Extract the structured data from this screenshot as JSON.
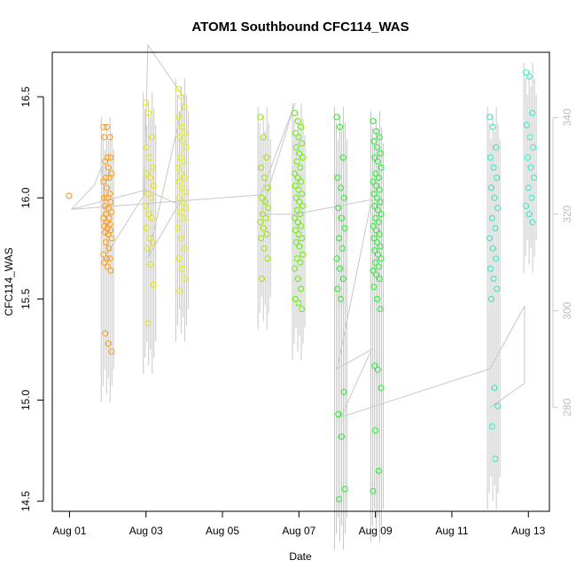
{
  "chart_data": {
    "type": "scatter",
    "title": "ATOM1 Southbound CFC114_WAS",
    "xlabel": "Date",
    "ylabel": "CFC114_WAS",
    "x_unit": "days since Aug 01",
    "xlim": [
      -0.45,
      12.55
    ],
    "ylim": [
      14.45,
      16.72
    ],
    "y2lim": [
      258.5,
      353.5
    ],
    "x_ticks": [
      {
        "value": 0,
        "label": "Aug 01"
      },
      {
        "value": 2,
        "label": "Aug 03"
      },
      {
        "value": 4,
        "label": "Aug 05"
      },
      {
        "value": 6,
        "label": "Aug 07"
      },
      {
        "value": 8,
        "label": "Aug 09"
      },
      {
        "value": 10,
        "label": "Aug 11"
      },
      {
        "value": 12,
        "label": "Aug 13"
      }
    ],
    "y_ticks": [
      {
        "value": 14.5,
        "label": "14.5"
      },
      {
        "value": 15.0,
        "label": "15.0"
      },
      {
        "value": 15.5,
        "label": "15.5"
      },
      {
        "value": 16.0,
        "label": "16.0"
      },
      {
        "value": 16.5,
        "label": "16.5"
      }
    ],
    "y2_ticks": [
      {
        "value": 280,
        "label": "280"
      },
      {
        "value": 300,
        "label": "300"
      },
      {
        "value": 320,
        "label": "320"
      },
      {
        "value": 340,
        "label": "340"
      }
    ],
    "series": [
      {
        "name": "CFC114_WAS",
        "clusters": [
          {
            "x": 0.0,
            "color": "#ff8c1a",
            "values": [
              16.01
            ]
          },
          {
            "x": 0.9,
            "color": "#ff9a10",
            "values": [
              16.35,
              16.35,
              16.3,
              16.3,
              16.2,
              16.2,
              16.18,
              16.15,
              16.12,
              16.1,
              16.1,
              16.08,
              16.05,
              16.02,
              16.0,
              16.0,
              15.98,
              15.96,
              15.95,
              15.93,
              15.92,
              15.9,
              15.9,
              15.88,
              15.87,
              15.86,
              15.85,
              15.84,
              15.83,
              15.82,
              15.8,
              15.78,
              15.75,
              15.72,
              15.7,
              15.7,
              15.68,
              15.66,
              15.64,
              15.33,
              15.28,
              15.24
            ]
          },
          {
            "x": 2.0,
            "color": "#e6e600",
            "values": [
              16.47,
              16.42,
              16.3,
              16.25,
              16.2,
              16.15,
              16.12,
              16.1,
              16.06,
              16.02,
              16.0,
              15.96,
              15.92,
              15.9,
              15.85,
              15.8,
              15.78,
              15.75,
              15.67,
              15.57,
              15.38
            ]
          },
          {
            "x": 2.85,
            "color": "#e6f000",
            "values": [
              16.54,
              16.5,
              16.45,
              16.4,
              16.35,
              16.32,
              16.3,
              16.28,
              16.25,
              16.2,
              16.18,
              16.15,
              16.12,
              16.1,
              16.08,
              16.05,
              16.03,
              16.0,
              15.98,
              15.95,
              15.93,
              15.9,
              15.85,
              15.8,
              15.75,
              15.7,
              15.65,
              15.6,
              15.54
            ]
          },
          {
            "x": 5.0,
            "color": "#99e600",
            "values": [
              16.4,
              16.3,
              16.2,
              16.15,
              16.1,
              16.05,
              16.0,
              15.98,
              15.95,
              15.92,
              15.9,
              15.88,
              15.85,
              15.82,
              15.8,
              15.75,
              15.7,
              15.6
            ]
          },
          {
            "x": 5.9,
            "color": "#66ee00",
            "values": [
              16.42,
              16.38,
              16.35,
              16.32,
              16.3,
              16.27,
              16.25,
              16.22,
              16.2,
              16.18,
              16.15,
              16.12,
              16.1,
              16.08,
              16.06,
              16.04,
              16.02,
              16.0,
              15.98,
              15.96,
              15.94,
              15.92,
              15.9,
              15.88,
              15.86,
              15.84,
              15.82,
              15.8,
              15.78,
              15.76,
              15.72,
              15.7,
              15.68,
              15.65,
              15.6,
              15.55,
              15.5,
              15.48,
              15.45
            ]
          },
          {
            "x": 7.0,
            "color": "#22ee22",
            "values": [
              16.4,
              16.35,
              16.2,
              16.1,
              16.05,
              16.0,
              15.95,
              15.9,
              15.85,
              15.8,
              15.75,
              15.7,
              15.65,
              15.6,
              15.55,
              15.5,
              15.04,
              14.93,
              14.82,
              14.56,
              14.51
            ]
          },
          {
            "x": 7.95,
            "color": "#22ee33",
            "values": [
              16.38,
              16.33,
              16.3,
              16.28,
              16.25,
              16.22,
              16.2,
              16.18,
              16.15,
              16.12,
              16.1,
              16.08,
              16.06,
              16.04,
              16.02,
              16.0,
              15.98,
              15.96,
              15.94,
              15.92,
              15.9,
              15.88,
              15.86,
              15.84,
              15.82,
              15.8,
              15.78,
              15.76,
              15.74,
              15.72,
              15.7,
              15.68,
              15.66,
              15.64,
              15.62,
              15.6,
              15.56,
              15.5,
              15.45,
              15.17,
              15.15,
              15.06,
              14.85,
              14.65,
              14.55
            ]
          },
          {
            "x": 11.0,
            "color": "#33e6c0",
            "values": [
              16.4,
              16.35,
              16.25,
              16.2,
              16.15,
              16.1,
              16.05,
              16.0,
              15.95,
              15.9,
              15.85,
              15.8,
              15.75,
              15.7,
              15.65,
              15.6,
              15.55,
              15.5,
              15.06,
              14.97,
              14.87,
              14.71
            ]
          },
          {
            "x": 11.95,
            "color": "#33ecc8",
            "values": [
              16.62,
              16.6,
              16.42,
              16.36,
              16.3,
              16.25,
              16.2,
              16.15,
              16.1,
              16.05,
              16.0,
              15.96,
              15.92,
              15.88
            ]
          }
        ]
      },
      {
        "name": "gray secondary trace",
        "color": "#c8c8c8",
        "axis": "right",
        "path": [
          [
            0.05,
            321
          ],
          [
            0.65,
            326
          ],
          [
            0.85,
            330
          ],
          [
            1.0,
            312
          ],
          [
            1.95,
            324
          ],
          [
            2.05,
            355
          ],
          [
            3.0,
            344
          ],
          [
            2.05,
            311
          ],
          [
            2.85,
            322
          ],
          [
            2.0,
            325
          ],
          [
            0.05,
            321
          ],
          [
            5.0,
            324
          ],
          [
            5.9,
            343
          ],
          [
            5.0,
            320
          ],
          [
            5.9,
            320
          ],
          [
            7.9,
            323
          ],
          [
            7.0,
            288
          ],
          [
            7.9,
            292
          ],
          [
            7.1,
            278
          ],
          [
            11.0,
            288
          ],
          [
            11.9,
            301
          ],
          [
            11.9,
            285
          ],
          [
            11.0,
            280
          ]
        ]
      }
    ]
  }
}
